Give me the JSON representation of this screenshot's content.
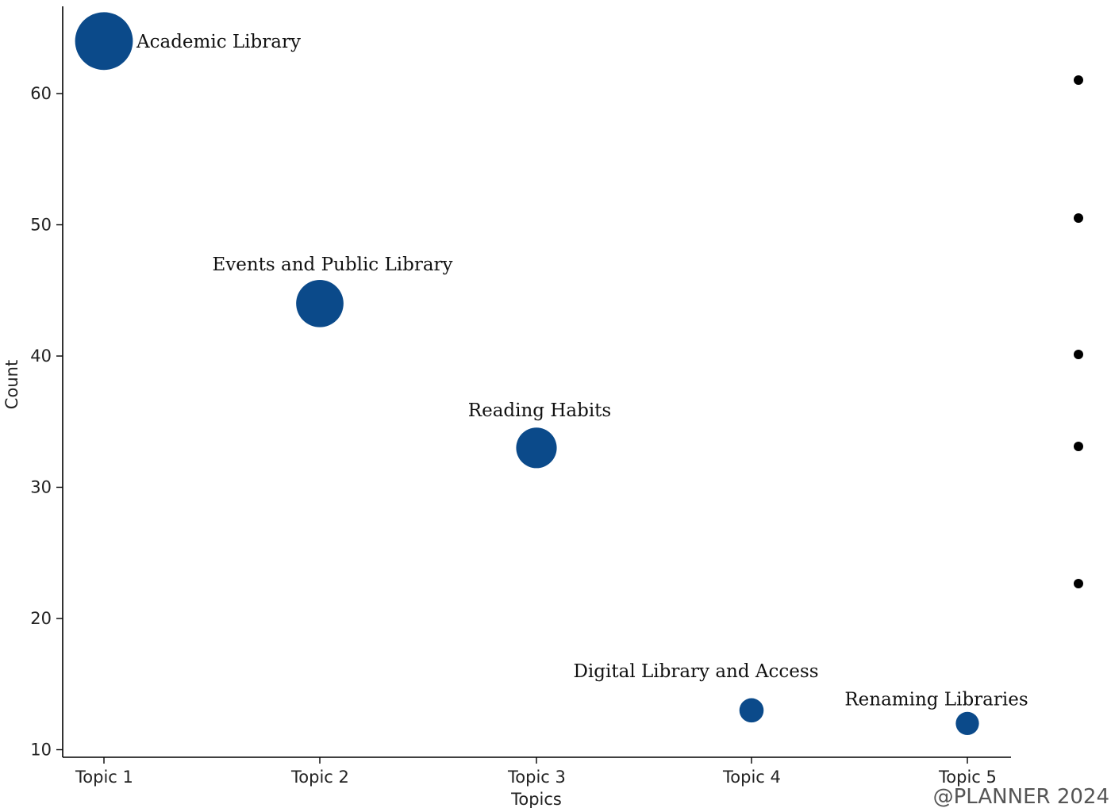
{
  "chart_data": {
    "type": "scatter",
    "categories": [
      "Topic 1",
      "Topic 2",
      "Topic 3",
      "Topic 4",
      "Topic 5"
    ],
    "values": [
      64,
      44,
      33,
      13,
      12
    ],
    "labels": [
      "Academic Library",
      "Events and Public Library",
      "Reading Habits",
      "Digital Library and Access",
      "Renaming Libraries"
    ],
    "xlabel": "Topics",
    "ylabel": "Count",
    "ylim": [
      9.5,
      67
    ],
    "yticks": [
      10,
      20,
      30,
      40,
      50,
      60
    ],
    "ytick_labels": [
      "10",
      "20",
      "30",
      "40",
      "50",
      "60"
    ],
    "bubble_color": "#0b4a8a",
    "grid": false,
    "legend_markers": 5,
    "legend_placement": "right",
    "legend_marker_color": "#000000"
  },
  "watermark": "@PLANNER 2024"
}
